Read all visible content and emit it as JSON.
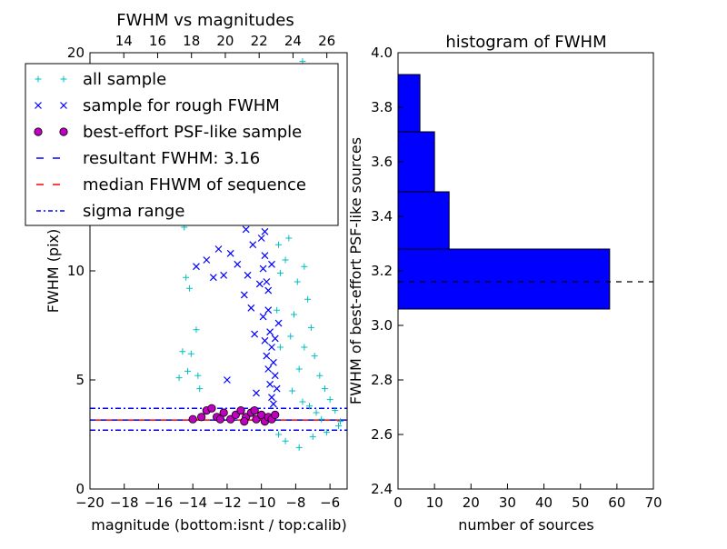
{
  "colors": {
    "all": "#00bfbf",
    "rough": "#0000ff",
    "best": "#bf00bf",
    "resultant": "#0000ff",
    "median": "#ff0000",
    "sigma": "#0000ff",
    "bar": "#0000ff"
  },
  "chart_data": [
    {
      "type": "scatter",
      "title": "FWHM vs magnitudes",
      "xlabel": "magnitude (bottom:isnt / top:calib)",
      "ylabel": "FWHM (pix)",
      "xlim": [
        -20,
        -5
      ],
      "ylim": [
        0,
        20
      ],
      "x_ticks": [
        "-20",
        "-18",
        "-16",
        "-14",
        "-12",
        "-10",
        "-8",
        "-6"
      ],
      "y_ticks": [
        "0",
        "5",
        "10",
        "15",
        "20"
      ],
      "top_xlim": [
        12,
        27.2
      ],
      "top_ticks": [
        "14",
        "16",
        "18",
        "20",
        "22",
        "24",
        "26"
      ],
      "legend": {
        "placement": "upper-left",
        "entries": [
          {
            "label": "all sample",
            "marker": "+"
          },
          {
            "label": "sample for rough FWHM",
            "marker": "x"
          },
          {
            "label": "best-effort PSF-like sample",
            "marker": "o"
          },
          {
            "label": "resultant FWHM: 3.16",
            "marker": "dashed"
          },
          {
            "label": "median FHWM of sequence",
            "marker": "dashed"
          },
          {
            "label": "sigma range",
            "marker": "dashdot"
          }
        ]
      },
      "resultant_fwhm": 3.16,
      "median_fwhm": 3.16,
      "sigma_range": [
        2.7,
        3.7
      ],
      "series": [
        {
          "name": "all sample",
          "points": [
            [
              -14.5,
              12
            ],
            [
              -14.2,
              9.2
            ],
            [
              -14.8,
              5.1
            ],
            [
              -14.3,
              5.4
            ],
            [
              -13.8,
              7.3
            ],
            [
              -14.6,
              6.3
            ],
            [
              -14.1,
              6.2
            ],
            [
              -13.6,
              4.6
            ],
            [
              -13.7,
              5.2
            ],
            [
              -14.4,
              9.7
            ],
            [
              -8.1,
              8
            ],
            [
              -7.9,
              9.5
            ],
            [
              -8.3,
              7
            ],
            [
              -7.5,
              6.5
            ],
            [
              -7.8,
              5.5
            ],
            [
              -8.2,
              4.5
            ],
            [
              -7.6,
              4
            ],
            [
              -7.2,
              3.8
            ],
            [
              -6.8,
              3.5
            ],
            [
              -6.5,
              3.2
            ],
            [
              -8.6,
              10.5
            ],
            [
              -8.4,
              11.5
            ],
            [
              -8.8,
              12.5
            ],
            [
              -8.5,
              13.5
            ],
            [
              -8.7,
              14.5
            ],
            [
              -8.3,
              15.5
            ],
            [
              -8.2,
              16.5
            ],
            [
              -8.0,
              17.5
            ],
            [
              -7.8,
              18.5
            ],
            [
              -7.6,
              19.6
            ],
            [
              -7.9,
              12.3
            ],
            [
              -7.5,
              10.2
            ],
            [
              -7.3,
              8.7
            ],
            [
              -7.1,
              7.4
            ],
            [
              -6.9,
              6.1
            ],
            [
              -6.6,
              5.2
            ],
            [
              -6.3,
              4.6
            ],
            [
              -6.0,
              4.1
            ],
            [
              -5.7,
              3.6
            ],
            [
              -5.4,
              3.1
            ],
            [
              -8.6,
              2.2
            ],
            [
              -7.8,
              1.9
            ],
            [
              -7.0,
              2.4
            ],
            [
              -6.2,
              2.6
            ],
            [
              -5.5,
              2.9
            ],
            [
              -9.0,
              2.5
            ],
            [
              -8.9,
              6.5
            ],
            [
              -9.1,
              8.2
            ],
            [
              -8.9,
              9.9
            ],
            [
              -9.0,
              11.2
            ]
          ]
        },
        {
          "name": "sample for rough FWHM",
          "points": [
            [
              -13.8,
              10.2
            ],
            [
              -13.2,
              10.5
            ],
            [
              -12.8,
              9.7
            ],
            [
              -12.5,
              11
            ],
            [
              -12.2,
              9.8
            ],
            [
              -11.8,
              10.8
            ],
            [
              -11.4,
              10.3
            ],
            [
              -11.0,
              8.9
            ],
            [
              -10.8,
              9.8
            ],
            [
              -10.5,
              11.2
            ],
            [
              -10.2,
              12.8
            ],
            [
              -10.0,
              11.5
            ],
            [
              -9.8,
              10.7
            ],
            [
              -9.7,
              9.5
            ],
            [
              -9.6,
              8.2
            ],
            [
              -9.5,
              7.2
            ],
            [
              -9.4,
              6.5
            ],
            [
              -9.3,
              5.8
            ],
            [
              -9.2,
              5.2
            ],
            [
              -9.1,
              4.6
            ],
            [
              -9.9,
              7.9
            ],
            [
              -9.8,
              6.8
            ],
            [
              -9.7,
              6.1
            ],
            [
              -9.6,
              5.5
            ],
            [
              -9.5,
              4.8
            ],
            [
              -9.4,
              4.2
            ],
            [
              -9.3,
              3.9
            ],
            [
              -10.4,
              7.1
            ],
            [
              -10.6,
              8.3
            ],
            [
              -11.2,
              12.3
            ],
            [
              -10.9,
              11.9
            ],
            [
              -10.1,
              9.4
            ],
            [
              -9.9,
              10.1
            ],
            [
              -12.0,
              5.0
            ],
            [
              -10.3,
              4.4
            ],
            [
              -9.2,
              6.9
            ],
            [
              -9.0,
              7.6
            ],
            [
              -9.6,
              9.1
            ],
            [
              -9.4,
              10.3
            ],
            [
              -9.8,
              11.8
            ]
          ]
        },
        {
          "name": "best-effort PSF-like sample",
          "points": [
            [
              -14.0,
              3.2
            ],
            [
              -13.5,
              3.3
            ],
            [
              -13.2,
              3.6
            ],
            [
              -12.9,
              3.7
            ],
            [
              -12.6,
              3.3
            ],
            [
              -12.2,
              3.5
            ],
            [
              -11.8,
              3.2
            ],
            [
              -11.5,
              3.4
            ],
            [
              -11.2,
              3.6
            ],
            [
              -10.9,
              3.3
            ],
            [
              -10.6,
              3.5
            ],
            [
              -10.3,
              3.2
            ],
            [
              -10.0,
              3.4
            ],
            [
              -9.8,
              3.1
            ],
            [
              -9.6,
              3.3
            ],
            [
              -9.4,
              3.2
            ],
            [
              -9.2,
              3.4
            ],
            [
              -12.4,
              3.2
            ],
            [
              -11.0,
              3.1
            ],
            [
              -10.4,
              3.6
            ]
          ]
        }
      ]
    },
    {
      "type": "bar",
      "orientation": "horizontal",
      "title": "histogram of FWHM",
      "xlabel": "number of sources",
      "ylabel": "FWHM of best-effort PSF-like sources",
      "xlim": [
        0,
        70
      ],
      "ylim": [
        2.4,
        4.0
      ],
      "x_ticks": [
        "0",
        "10",
        "20",
        "30",
        "40",
        "50",
        "60",
        "70"
      ],
      "y_ticks": [
        "2.4",
        "2.6",
        "2.8",
        "3.0",
        "3.2",
        "3.4",
        "3.6",
        "3.8",
        "4.0"
      ],
      "bins": [
        {
          "from": 3.06,
          "to": 3.28,
          "count": 58
        },
        {
          "from": 3.28,
          "to": 3.49,
          "count": 14
        },
        {
          "from": 3.49,
          "to": 3.71,
          "count": 10
        },
        {
          "from": 3.71,
          "to": 3.92,
          "count": 6
        }
      ],
      "reference_line": 3.16
    }
  ]
}
